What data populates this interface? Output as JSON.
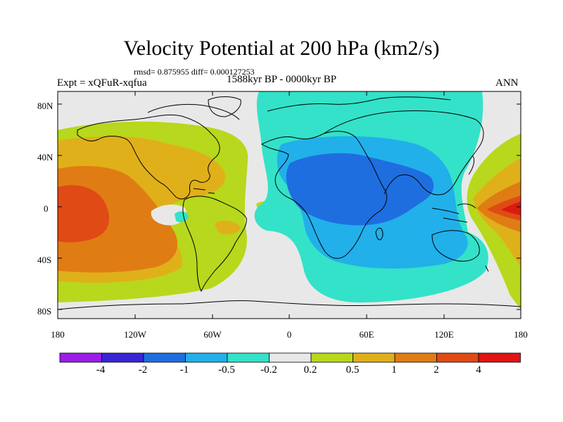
{
  "title": "Velocity Potential at 200 hPa (km2/s)",
  "stats": "rmsd= 0.875955 diff= 0.000127253",
  "left_label": "Expt = xQFuR-xqfua",
  "center_label": "1588kyr BP - 0000kyr BP",
  "right_label": "ANN",
  "lat_labels": [
    "80N",
    "40N",
    "0",
    "40S",
    "80S"
  ],
  "lon_labels": [
    "180",
    "120W",
    "60W",
    "0",
    "60E",
    "120E",
    "180"
  ],
  "colorbar": {
    "labels": [
      "-4",
      "-2",
      "-1",
      "-0.5",
      "-0.2",
      "0.2",
      "0.5",
      "1",
      "2",
      "4"
    ],
    "colors": [
      "#9a1ee8",
      "#3a25d6",
      "#1e6ee0",
      "#21b0ea",
      "#33e2c8",
      "#e8e8e8",
      "#b7d81c",
      "#e0b01a",
      "#e07c14",
      "#e04a14",
      "#e01414"
    ]
  },
  "palette": {
    "neutral": "#e8e8e8",
    "pos1": "#b7d81c",
    "pos2": "#e0b01a",
    "pos3": "#e07c14",
    "pos4": "#e04a14",
    "pos5": "#d91b10",
    "neg1": "#33e2c8",
    "neg2": "#21b0ea",
    "neg3": "#1e6ee0"
  }
}
